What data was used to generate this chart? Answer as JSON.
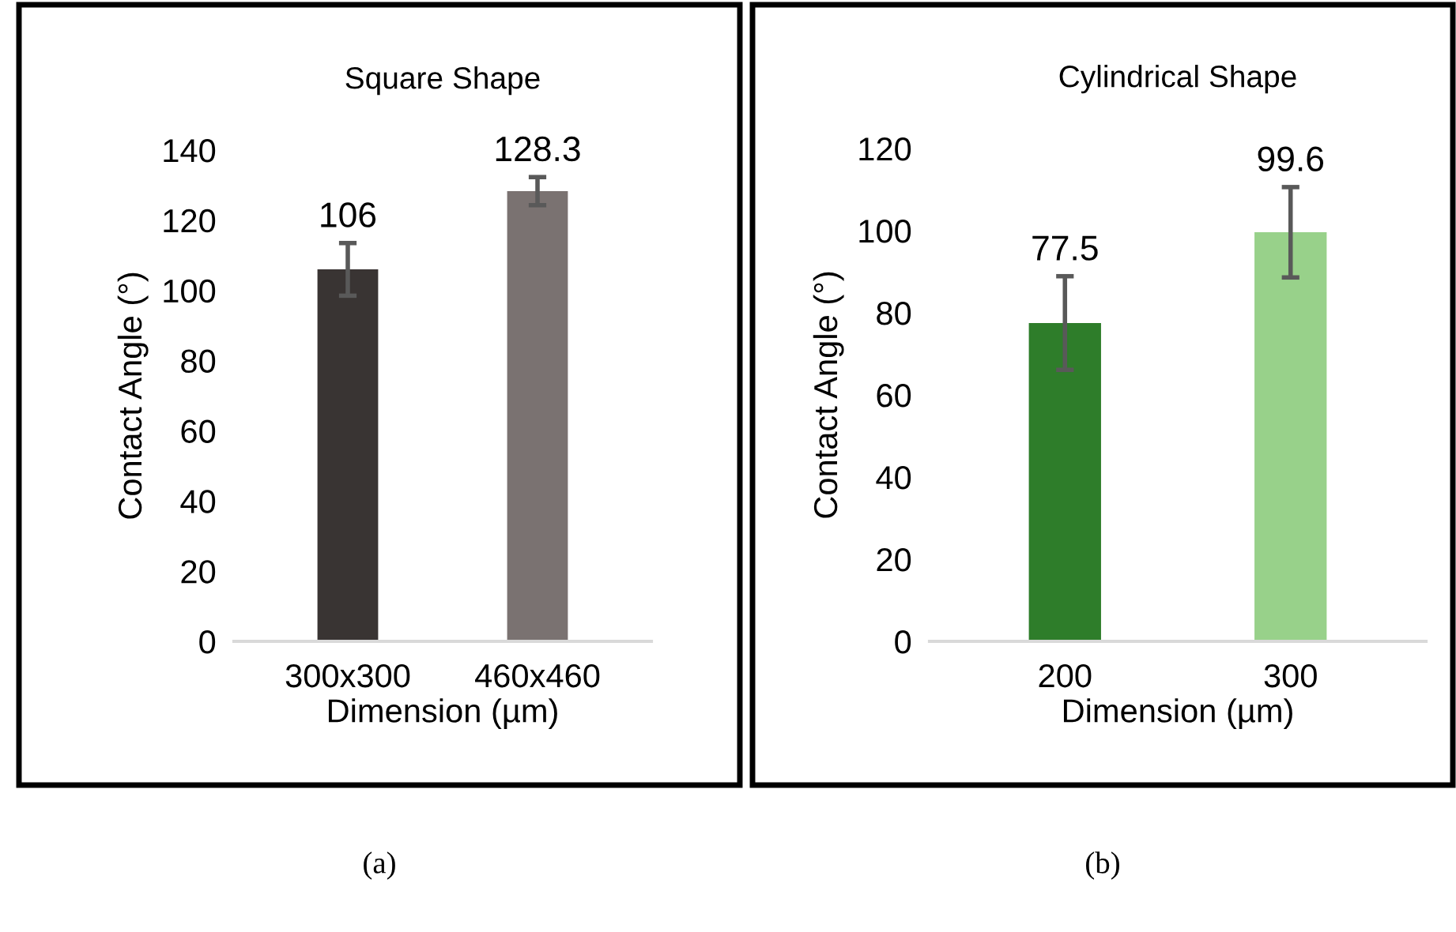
{
  "chart_data": [
    {
      "type": "bar",
      "title": "Square Shape",
      "xlabel": "Dimension (µm)",
      "ylabel": "Contact Angle (°)",
      "categories": [
        "300x300",
        "460x460"
      ],
      "values": [
        106,
        128.3
      ],
      "colors": [
        "#393433",
        "#7a7271"
      ],
      "errors": [
        7.5,
        4
      ],
      "ylim": [
        0,
        140
      ],
      "yticks": [
        0,
        20,
        40,
        60,
        80,
        100,
        120,
        140
      ],
      "data_labels": true,
      "grid": false,
      "legend": false,
      "annotations": [
        "(a)"
      ]
    },
    {
      "type": "bar",
      "title": "Cylindrical Shape",
      "xlabel": "Dimension (µm)",
      "ylabel": "Contact Angle (°)",
      "categories": [
        "200",
        "300"
      ],
      "values": [
        77.5,
        99.6
      ],
      "colors": [
        "#2e7d2a",
        "#98d18a"
      ],
      "errors": [
        11.4,
        11
      ],
      "ylim": [
        0,
        120
      ],
      "yticks": [
        0,
        20,
        40,
        60,
        80,
        100,
        120
      ],
      "data_labels": true,
      "grid": false,
      "legend": false,
      "annotations": [
        "(b)"
      ]
    }
  ]
}
